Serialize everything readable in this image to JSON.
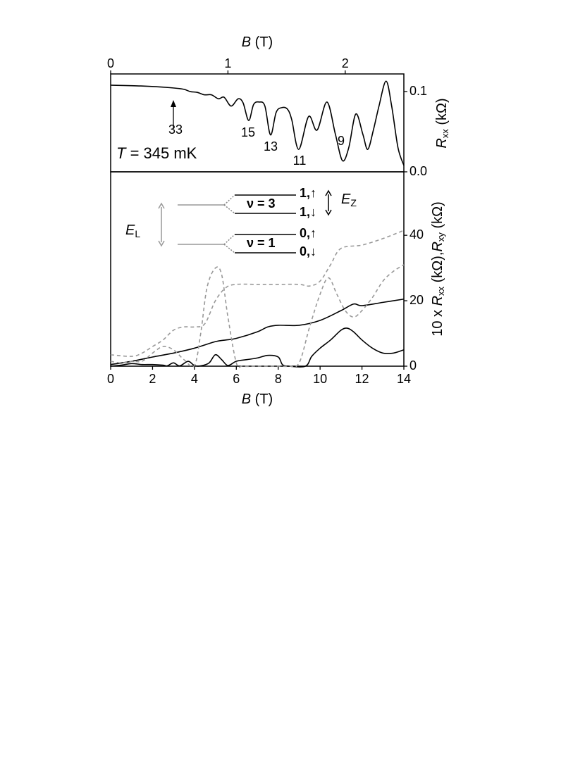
{
  "chart_data": [
    {
      "type": "line",
      "xlabel": [
        "B",
        " (T)"
      ],
      "ylabel": [
        "R",
        "xx",
        " (kΩ)"
      ],
      "xlim": [
        0,
        2.5
      ],
      "ylim": [
        0,
        0.122
      ],
      "xticks": [
        0,
        1,
        2
      ],
      "yticks": [
        {
          "value": 0,
          "label": "0.0"
        },
        0.1
      ],
      "annotations": [
        "33",
        "15",
        "13",
        "11",
        "9"
      ],
      "temperature_label": [
        "T",
        " = 345 mK"
      ],
      "series": [
        {
          "color": "#000000",
          "linestyle": "solid",
          "x": [
            0,
            0.258,
            0.498,
            0.619,
            0.679,
            0.739,
            0.799,
            0.859,
            0.919,
            0.967,
            1.027,
            1.087,
            1.129,
            1.177,
            1.219,
            1.267,
            1.315,
            1.363,
            1.411,
            1.459,
            1.508,
            1.544,
            1.604,
            1.688,
            1.76,
            1.844,
            1.916,
            1.976,
            2.03,
            2.09,
            2.15,
            2.192,
            2.24,
            2.288,
            2.348,
            2.396,
            2.45,
            2.5
          ],
          "values": [
            0.108,
            0.107,
            0.105,
            0.103,
            0.1,
            0.099,
            0.096,
            0.096,
            0.091,
            0.093,
            0.082,
            0.091,
            0.086,
            0.064,
            0.084,
            0.087,
            0.082,
            0.046,
            0.074,
            0.08,
            0.078,
            0.065,
            0.028,
            0.069,
            0.052,
            0.087,
            0.047,
            0.014,
            0.03,
            0.072,
            0.047,
            0.028,
            0.052,
            0.082,
            0.113,
            0.082,
            0.03,
            0.008
          ]
        }
      ]
    },
    {
      "type": "line",
      "xlabel": [
        "B",
        " (T)"
      ],
      "ylabel": [
        "10 x ",
        "R",
        "xx",
        " (kΩ),",
        "R",
        "xy",
        " (kΩ)"
      ],
      "xlim": [
        0,
        14
      ],
      "ylim": [
        0,
        59.4
      ],
      "xticks": [
        0,
        2,
        4,
        6,
        8,
        10,
        12,
        14
      ],
      "yticks": [
        0,
        20,
        40
      ],
      "inset": {
        "levels": [
          "ν = 3",
          "ν = 1"
        ],
        "states": [
          "1,↑",
          "1,↓",
          "0,↑",
          "0,↓"
        ],
        "zeeman": [
          "E",
          "Z"
        ],
        "landau": [
          "E",
          "L"
        ]
      },
      "series": [
        {
          "color": "#000000",
          "linestyle": "solid",
          "x": [
            0,
            1,
            2,
            3,
            4,
            5,
            5.5,
            6,
            7,
            7.5,
            8,
            9,
            10,
            11,
            11.6,
            12,
            13,
            14
          ],
          "values": [
            0.5,
            1.5,
            2.8,
            4,
            5.5,
            7.5,
            8,
            8.5,
            10.5,
            12,
            12.5,
            12.5,
            14,
            17,
            19,
            18.5,
            19.5,
            20.5
          ]
        },
        {
          "color": "#000000",
          "linestyle": "solid",
          "x": [
            0,
            0.5,
            1,
            1.5,
            2,
            2.5,
            2.7,
            3,
            3.3,
            3.7,
            4,
            4.3,
            4.7,
            5,
            5.3,
            5.6,
            6,
            6.5,
            7,
            7.5,
            8,
            8.2,
            8.5,
            9.3,
            9.6,
            10,
            10.5,
            11,
            11.3,
            11.6,
            12,
            12.5,
            13,
            13.5,
            14
          ],
          "values": [
            0,
            0.3,
            0.8,
            0.5,
            0.5,
            0.3,
            0.1,
            1,
            0.1,
            1.5,
            0.2,
            0.1,
            1,
            3.5,
            2,
            0.2,
            1.5,
            2,
            2.5,
            3.3,
            2.8,
            0.5,
            0,
            0,
            3,
            5.5,
            8,
            11,
            11.6,
            10.5,
            8,
            5.5,
            4,
            4,
            5
          ]
        },
        {
          "color": "#999999",
          "linestyle": "dashed",
          "x": [
            0,
            1,
            1.5,
            2,
            2.5,
            3,
            3.5,
            4,
            4.5,
            5,
            5.5,
            6,
            7,
            8,
            9,
            9.5,
            10,
            10.5,
            11,
            12,
            13,
            14
          ],
          "values": [
            3.5,
            3,
            4,
            6,
            8,
            11,
            12,
            12,
            13,
            20,
            24,
            25,
            25,
            25,
            25,
            24.5,
            26,
            31,
            36,
            37,
            39,
            41.5
          ]
        },
        {
          "color": "#999999",
          "linestyle": "dashed",
          "x": [
            0,
            0.5,
            1,
            1.5,
            2,
            2.5,
            3,
            3.5,
            4,
            4.3,
            4.6,
            5,
            5.3,
            5.6,
            6,
            6.3,
            7,
            8,
            8.5,
            9,
            9.5,
            10,
            10.4,
            10.8,
            11.2,
            11.6,
            12,
            12.5,
            13,
            13.5,
            14
          ],
          "values": [
            1.5,
            1,
            1.5,
            1.5,
            4,
            6,
            5,
            2,
            0.2,
            10,
            24,
            30,
            28,
            15,
            1,
            0,
            0,
            0,
            0,
            1,
            12,
            22,
            27,
            22,
            17,
            15,
            17,
            21,
            26,
            29,
            31
          ]
        }
      ]
    }
  ]
}
